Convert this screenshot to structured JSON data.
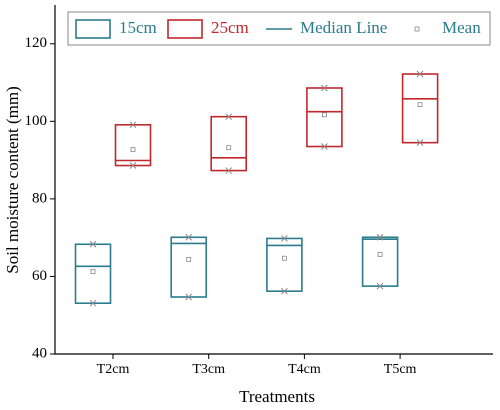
{
  "chart_data": {
    "type": "box",
    "x_label": "Treatments",
    "y_label": "Soil moisture content (mm)",
    "categories": [
      "T2cm",
      "T3cm",
      "T4cm",
      "T5cm"
    ],
    "ylim": [
      40,
      130
    ],
    "yticks": [
      40,
      60,
      80,
      100,
      120
    ],
    "median_label": "Median Line",
    "mean_label": "Mean",
    "series": [
      {
        "name": "15cm",
        "color": "#2b7c8c",
        "min": [
          53.1,
          54.7,
          56.2,
          57.5
        ],
        "max": [
          68.3,
          70.1,
          69.8,
          70.1
        ],
        "median": [
          62.6,
          68.5,
          68.0,
          69.6
        ],
        "mean": [
          61.3,
          64.4,
          64.7,
          65.7
        ]
      },
      {
        "name": "25cm",
        "color": "#c0282d",
        "min": [
          88.6,
          87.3,
          93.5,
          94.5
        ],
        "max": [
          99.1,
          101.2,
          108.6,
          112.2
        ],
        "median": [
          89.9,
          90.6,
          102.5,
          105.8
        ],
        "mean": [
          92.7,
          93.2,
          101.7,
          104.3
        ]
      }
    ]
  }
}
